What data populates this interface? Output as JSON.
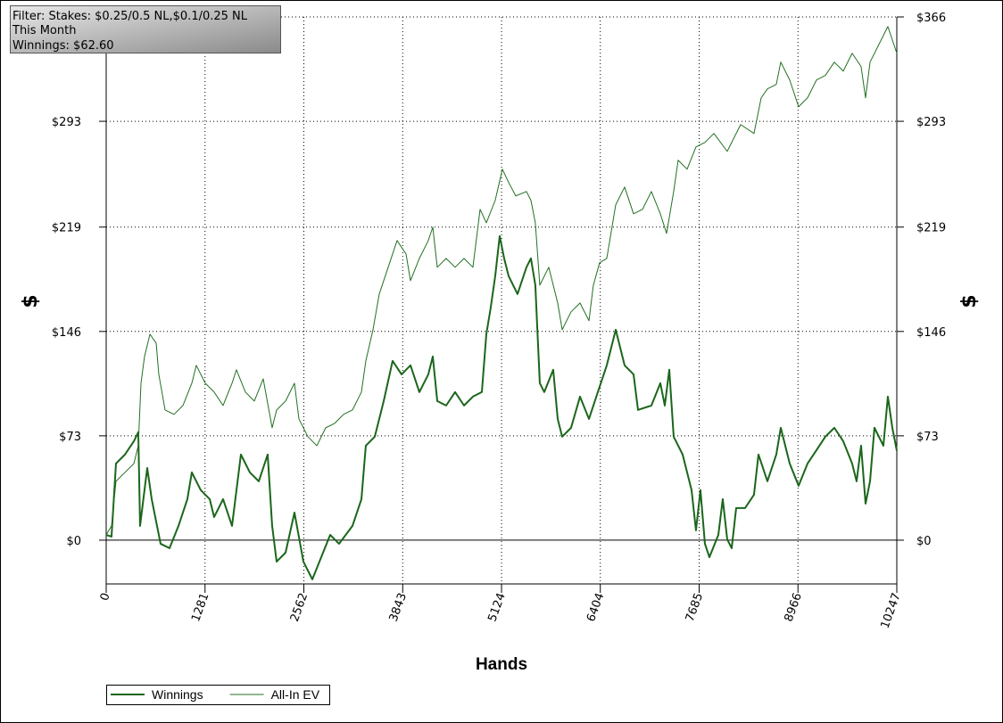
{
  "chart_data": {
    "type": "line",
    "info": [
      "Filter: Stakes: $0.25/0.5 NL,$0.1/0.25 NL",
      "This Month",
      "Winnings: $62.60"
    ],
    "x_label": "Hands",
    "y_label": "$",
    "xlim": [
      0,
      10247
    ],
    "xticks": [
      0,
      1281,
      2562,
      3843,
      5124,
      6404,
      7685,
      8966,
      10247
    ],
    "ylim": [
      -30.6,
      366
    ],
    "yticks": [
      {
        "value": 0,
        "label": "$0"
      },
      {
        "value": 73,
        "label": "$73"
      },
      {
        "value": 146,
        "label": "$146"
      },
      {
        "value": 219,
        "label": "$219"
      },
      {
        "value": 293,
        "label": "$293"
      },
      {
        "value": 366,
        "label": "$366"
      }
    ],
    "grid": true,
    "legend": "bottom-left",
    "series": [
      {
        "name": "Winnings",
        "color": "#1b661b",
        "width": 2,
        "x": [
          0,
          69,
          127,
          243,
          359,
          416,
          439,
          532,
          590,
          705,
          821,
          937,
          1052,
          1110,
          1226,
          1342,
          1399,
          1515,
          1631,
          1746,
          1862,
          1978,
          2093,
          2151,
          2209,
          2325,
          2440,
          2556,
          2672,
          2787,
          2903,
          3018,
          3192,
          3308,
          3365,
          3481,
          3597,
          3712,
          3828,
          3944,
          4059,
          4175,
          4233,
          4291,
          4406,
          4522,
          4638,
          4753,
          4869,
          4927,
          4984,
          5042,
          5100,
          5158,
          5216,
          5331,
          5447,
          5505,
          5562,
          5620,
          5678,
          5794,
          5852,
          5910,
          6025,
          6141,
          6257,
          6372,
          6488,
          6604,
          6719,
          6835,
          6893,
          7066,
          7182,
          7240,
          7298,
          7355,
          7471,
          7587,
          7644,
          7702,
          7760,
          7818,
          7934,
          7991,
          8049,
          8107,
          8165,
          8281,
          8396,
          8454,
          8570,
          8685,
          8743,
          8859,
          8974,
          9090,
          9206,
          9321,
          9437,
          9553,
          9668,
          9726,
          9784,
          9842,
          9900,
          9957,
          10073,
          10131,
          10189,
          10247
        ],
        "values": [
          3.7,
          2.5,
          53.6,
          59.9,
          69.2,
          75.5,
          10,
          50.5,
          28.7,
          -2.5,
          -5.6,
          10,
          28.7,
          47.4,
          35,
          28.7,
          16.2,
          28.7,
          10,
          59.9,
          47.4,
          41.2,
          59.9,
          10,
          -15,
          -8.7,
          19.3,
          -15,
          -27.4,
          -11.9,
          3.7,
          -2.5,
          10,
          28.7,
          66.1,
          72.4,
          97.3,
          125.4,
          116,
          122.3,
          103.6,
          116,
          128.5,
          97.3,
          94.2,
          103.6,
          94.2,
          100.4,
          103.6,
          144.1,
          162.8,
          184.7,
          212.7,
          197.1,
          184.7,
          172.2,
          190.9,
          197.1,
          178.4,
          109.8,
          103.6,
          119.2,
          84.8,
          72.4,
          78.6,
          100.4,
          84.8,
          103.6,
          122.3,
          147.2,
          122.3,
          116,
          91.1,
          94.2,
          109.8,
          94.2,
          119.2,
          72.4,
          59.9,
          35,
          6.9,
          35,
          -2.5,
          -11.9,
          3.7,
          28.7,
          0.6,
          -5.6,
          22.5,
          22.5,
          31.8,
          59.9,
          41.2,
          59.9,
          78.6,
          53.6,
          38.1,
          53.6,
          63,
          72.4,
          78.6,
          69.2,
          53.6,
          41.2,
          66.1,
          25.6,
          41.2,
          78.6,
          66.1,
          100.4,
          78.6,
          62.6
        ]
      },
      {
        "name": "All-In EV",
        "color": "#237023",
        "width": 1,
        "x": [
          0,
          69,
          127,
          243,
          359,
          416,
          451,
          497,
          567,
          648,
          682,
          763,
          879,
          995,
          1110,
          1168,
          1284,
          1399,
          1515,
          1631,
          1688,
          1804,
          1920,
          2035,
          2151,
          2209,
          2325,
          2440,
          2498,
          2614,
          2730,
          2845,
          2961,
          3077,
          3192,
          3308,
          3365,
          3458,
          3539,
          3655,
          3770,
          3886,
          3944,
          4059,
          4175,
          4233,
          4291,
          4406,
          4522,
          4638,
          4753,
          4846,
          4927,
          5042,
          5135,
          5216,
          5308,
          5447,
          5505,
          5562,
          5620,
          5736,
          5852,
          5910,
          6025,
          6141,
          6257,
          6314,
          6395,
          6488,
          6604,
          6719,
          6835,
          6951,
          7066,
          7182,
          7263,
          7355,
          7413,
          7529,
          7644,
          7760,
          7876,
          8049,
          8223,
          8396,
          8489,
          8570,
          8685,
          8743,
          8859,
          8974,
          9090,
          9206,
          9321,
          9437,
          9553,
          9668,
          9784,
          9842,
          9900,
          10016,
          10131,
          10247
        ],
        "values": [
          3.7,
          10,
          41.2,
          47.4,
          53.6,
          66.1,
          109.8,
          128.5,
          144.1,
          137.8,
          116,
          91.1,
          88,
          94.2,
          109.8,
          122.3,
          109.8,
          103.6,
          94.2,
          109.8,
          119.2,
          103.6,
          97.3,
          112.9,
          78.6,
          91.1,
          97.3,
          109.8,
          84.8,
          72.4,
          66.1,
          78.6,
          81.7,
          88,
          91.1,
          103.6,
          125.4,
          147.2,
          172.2,
          190.9,
          209.6,
          200.2,
          181.5,
          197.1,
          209.6,
          219,
          190.9,
          197.1,
          190.9,
          197.1,
          190.9,
          231.4,
          222,
          237.7,
          259.5,
          250.2,
          240.8,
          243.9,
          237.7,
          222,
          178.4,
          190.9,
          165.9,
          147.2,
          159.7,
          165.9,
          153.5,
          178.4,
          194,
          197.1,
          234.6,
          247,
          228.3,
          231.4,
          243.9,
          228.3,
          214.6,
          243.9,
          265.8,
          259.5,
          275.1,
          278.2,
          284.5,
          272,
          290.7,
          284.5,
          309.4,
          315.7,
          318.8,
          334.4,
          321.9,
          303.2,
          309.4,
          321.9,
          325.1,
          334.4,
          328.1,
          340.6,
          331.3,
          309.4,
          334.4,
          346.9,
          359.3,
          340.6
        ]
      }
    ]
  }
}
